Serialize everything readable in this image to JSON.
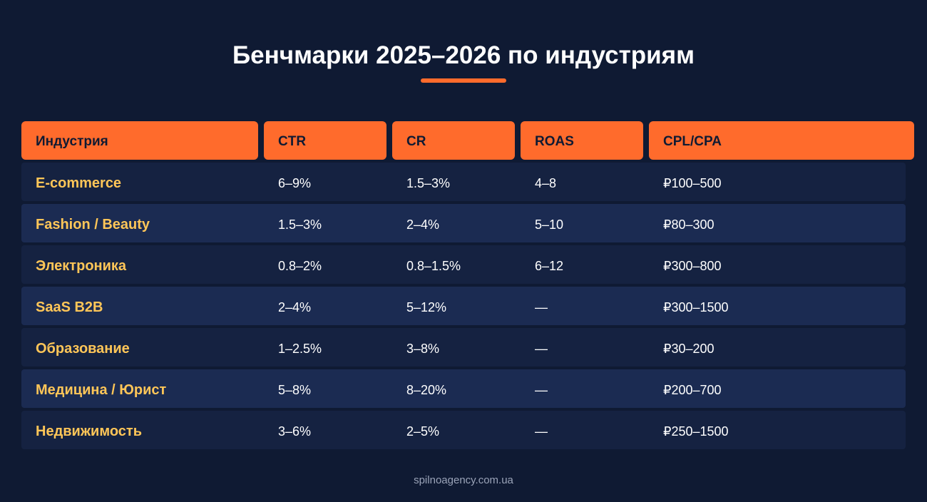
{
  "title": "Бенчмарки 2025–2026 по индустриям",
  "colors": {
    "background": "#0f1a33",
    "accent": "#ff6b2c",
    "industry_text": "#ffc658",
    "row_dark": "#152241",
    "row_light": "#1b2b52",
    "footer_text": "#9aa3b8"
  },
  "table": {
    "headers": [
      "Индустрия",
      "CTR",
      "CR",
      "ROAS",
      "CPL/CPA"
    ],
    "rows": [
      [
        "E-commerce",
        "6–9%",
        "1.5–3%",
        "4–8",
        "₽100–500"
      ],
      [
        "Fashion / Beauty",
        "1.5–3%",
        "2–4%",
        "5–10",
        "₽80–300"
      ],
      [
        "Электроника",
        "0.8–2%",
        "0.8–1.5%",
        "6–12",
        "₽300–800"
      ],
      [
        "SaaS B2B",
        "2–4%",
        "5–12%",
        "—",
        "₽300–1500"
      ],
      [
        "Образование",
        "1–2.5%",
        "3–8%",
        "—",
        "₽30–200"
      ],
      [
        "Медицина / Юрист",
        "5–8%",
        "8–20%",
        "—",
        "₽200–700"
      ],
      [
        "Недвижимость",
        "3–6%",
        "2–5%",
        "—",
        "₽250–1500"
      ]
    ]
  },
  "footer": "spilnoagency.com.ua"
}
